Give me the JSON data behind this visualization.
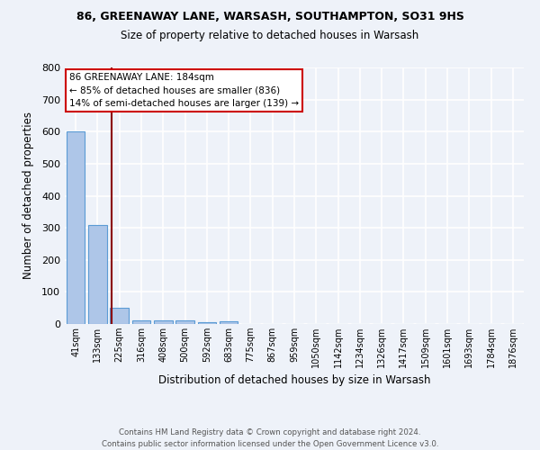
{
  "title1": "86, GREENAWAY LANE, WARSASH, SOUTHAMPTON, SO31 9HS",
  "title2": "Size of property relative to detached houses in Warsash",
  "xlabel": "Distribution of detached houses by size in Warsash",
  "ylabel": "Number of detached properties",
  "bin_labels": [
    "41sqm",
    "133sqm",
    "225sqm",
    "316sqm",
    "408sqm",
    "500sqm",
    "592sqm",
    "683sqm",
    "775sqm",
    "867sqm",
    "959sqm",
    "1050sqm",
    "1142sqm",
    "1234sqm",
    "1326sqm",
    "1417sqm",
    "1509sqm",
    "1601sqm",
    "1693sqm",
    "1784sqm",
    "1876sqm"
  ],
  "bin_values": [
    600,
    310,
    50,
    10,
    12,
    12,
    5,
    8,
    0,
    0,
    0,
    0,
    0,
    0,
    0,
    0,
    0,
    0,
    0,
    0,
    0
  ],
  "property_label": "86 GREENAWAY LANE: 184sqm",
  "annotation_line1": "← 85% of detached houses are smaller (836)",
  "annotation_line2": "14% of semi-detached houses are larger (139) →",
  "bar_color": "#aec6e8",
  "bar_edge_color": "#5b9bd5",
  "vline_color": "#8b0000",
  "vline_x": 1.65,
  "annotation_box_color": "#ffffff",
  "annotation_box_edge": "#cc0000",
  "background_color": "#eef2f9",
  "grid_color": "#ffffff",
  "ylim": [
    0,
    800
  ],
  "yticks": [
    0,
    100,
    200,
    300,
    400,
    500,
    600,
    700,
    800
  ],
  "footer": "Contains HM Land Registry data © Crown copyright and database right 2024.\nContains public sector information licensed under the Open Government Licence v3.0."
}
